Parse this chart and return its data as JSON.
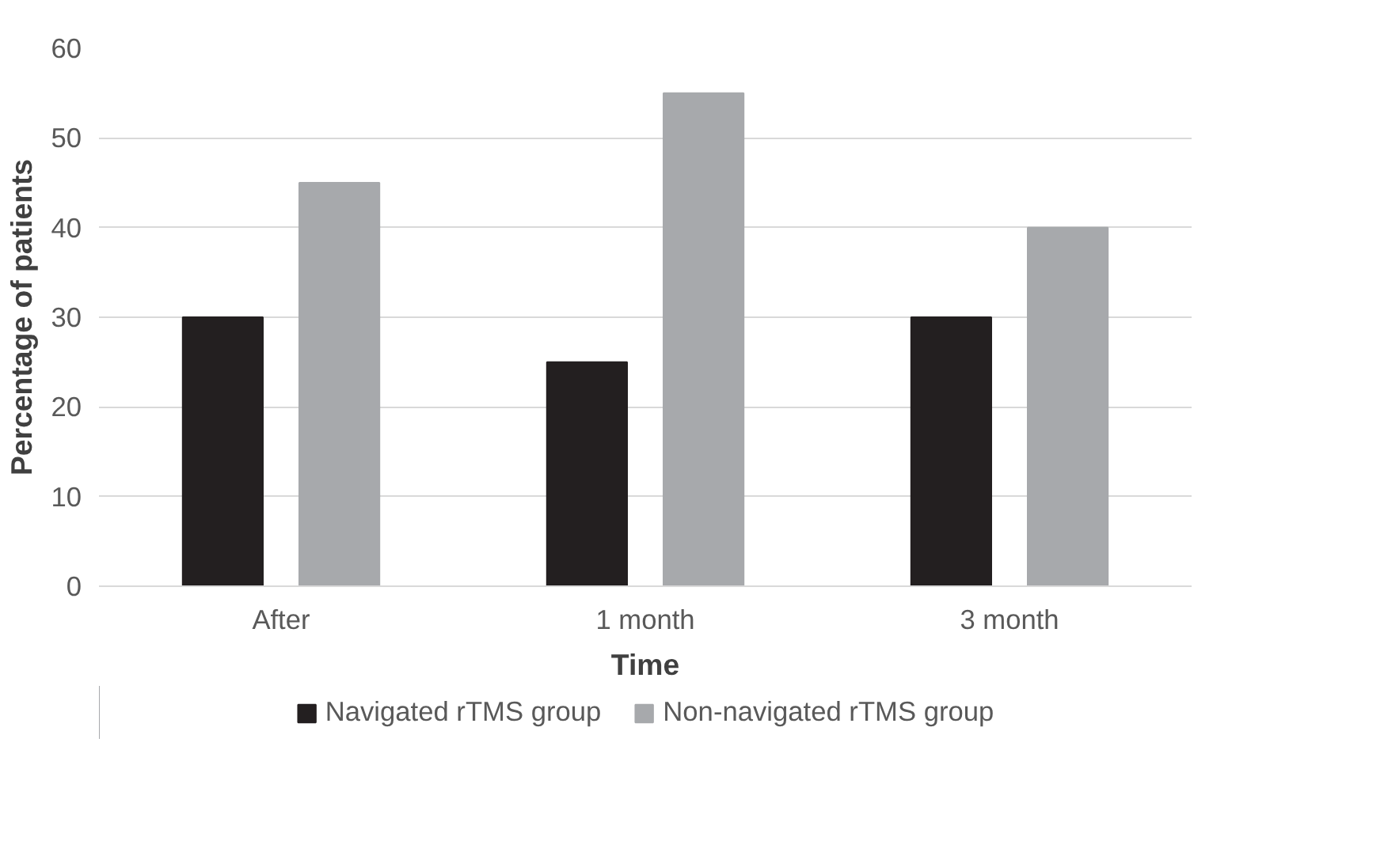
{
  "chart_data": {
    "type": "bar",
    "xlabel": "Time",
    "ylabel": "Percentage of patients",
    "categories": [
      "After",
      "1 month",
      "3 month"
    ],
    "series": [
      {
        "name": "Navigated rTMS group",
        "color": "#231f20",
        "values": [
          30,
          25,
          30
        ]
      },
      {
        "name": "Non-navigated rTMS group",
        "color": "#a7a9ac",
        "values": [
          45,
          55,
          40
        ]
      }
    ],
    "ylim": [
      0,
      60
    ],
    "yticks": [
      0,
      10,
      20,
      30,
      40,
      50,
      60
    ],
    "grid": "y",
    "legend": "bottom"
  }
}
